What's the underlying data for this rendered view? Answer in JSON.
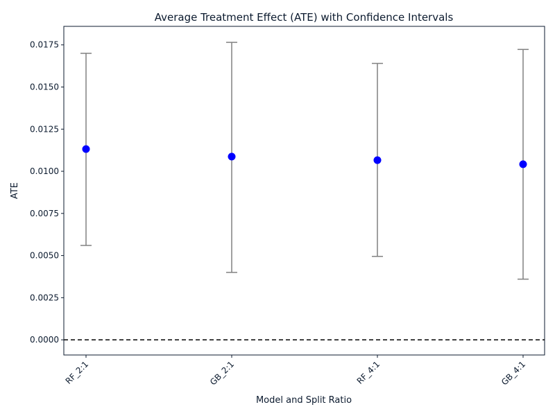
{
  "chart_data": {
    "type": "scatter",
    "title": "Average Treatment Effect (ATE) with Confidence Intervals",
    "xlabel": "Model and Split Ratio",
    "ylabel": "ATE",
    "categories": [
      "RF_2:1",
      "GB_2:1",
      "RF_4:1",
      "GB_4:1"
    ],
    "values": [
      0.01132,
      0.01087,
      0.01066,
      0.01042
    ],
    "ci_lower": [
      0.0056,
      0.004,
      0.00495,
      0.0036
    ],
    "ci_upper": [
      0.017,
      0.01765,
      0.0164,
      0.01723
    ],
    "ylim": [
      -0.0009,
      0.0186
    ],
    "yticks": [
      0.0,
      0.0025,
      0.005,
      0.0075,
      0.01,
      0.0125,
      0.015,
      0.0175
    ],
    "ytick_labels": [
      "0.0000",
      "0.0025",
      "0.0050",
      "0.0075",
      "0.0100",
      "0.0125",
      "0.0150",
      "0.0175"
    ],
    "reference_line": 0.0,
    "grid": false,
    "colors": {
      "point": "#0000ff",
      "errorbar": "#808080",
      "reference": "#000000"
    }
  }
}
